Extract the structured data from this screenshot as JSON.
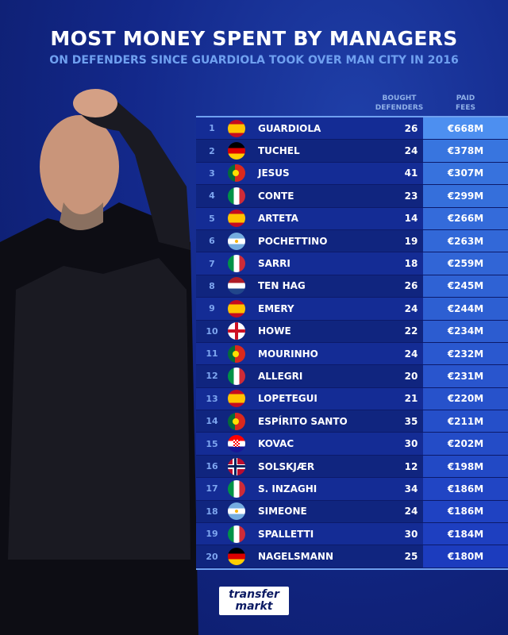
{
  "title": "MOST MONEY SPENT BY MANAGERS",
  "subtitle": "ON DEFENDERS SINCE GUARDIOLA TOOK OVER MAN CITY IN 2016",
  "logo_text": [
    "transfer",
    "markt"
  ],
  "chart_data": {
    "type": "table",
    "columns": [
      "BOUGHT DEFENDERS",
      "PAID FEES"
    ],
    "column_labels": {
      "bought_line1": "BOUGHT",
      "bought_line2": "DEFENDERS",
      "fees_line1": "PAID",
      "fees_line2": "FEES"
    },
    "rows": [
      {
        "rank": "1",
        "flag": "spain",
        "name": "GUARDIOLA",
        "bought": "26",
        "fee": "€668M"
      },
      {
        "rank": "2",
        "flag": "germany",
        "name": "TUCHEL",
        "bought": "24",
        "fee": "€378M"
      },
      {
        "rank": "3",
        "flag": "portugal",
        "name": "JESUS",
        "bought": "41",
        "fee": "€307M"
      },
      {
        "rank": "4",
        "flag": "italy",
        "name": "CONTE",
        "bought": "23",
        "fee": "€299M"
      },
      {
        "rank": "5",
        "flag": "spain",
        "name": "ARTETA",
        "bought": "14",
        "fee": "€266M"
      },
      {
        "rank": "6",
        "flag": "argentina",
        "name": "POCHETTINO",
        "bought": "19",
        "fee": "€263M"
      },
      {
        "rank": "7",
        "flag": "italy",
        "name": "SARRI",
        "bought": "18",
        "fee": "€259M"
      },
      {
        "rank": "8",
        "flag": "netherlands",
        "name": "TEN HAG",
        "bought": "26",
        "fee": "€245M"
      },
      {
        "rank": "9",
        "flag": "spain",
        "name": "EMERY",
        "bought": "24",
        "fee": "€244M"
      },
      {
        "rank": "10",
        "flag": "england",
        "name": "HOWE",
        "bought": "22",
        "fee": "€234M"
      },
      {
        "rank": "11",
        "flag": "portugal",
        "name": "MOURINHO",
        "bought": "24",
        "fee": "€232M"
      },
      {
        "rank": "12",
        "flag": "italy",
        "name": "ALLEGRI",
        "bought": "20",
        "fee": "€231M"
      },
      {
        "rank": "13",
        "flag": "spain",
        "name": "LOPETEGUI",
        "bought": "21",
        "fee": "€220M"
      },
      {
        "rank": "14",
        "flag": "portugal",
        "name": "ESPÍRITO SANTO",
        "bought": "35",
        "fee": "€211M"
      },
      {
        "rank": "15",
        "flag": "croatia",
        "name": "KOVAC",
        "bought": "30",
        "fee": "€202M"
      },
      {
        "rank": "16",
        "flag": "norway",
        "name": "SOLSKJÆR",
        "bought": "12",
        "fee": "€198M"
      },
      {
        "rank": "17",
        "flag": "italy",
        "name": "S. INZAGHI",
        "bought": "34",
        "fee": "€186M"
      },
      {
        "rank": "18",
        "flag": "argentina",
        "name": "SIMEONE",
        "bought": "24",
        "fee": "€186M"
      },
      {
        "rank": "19",
        "flag": "italy",
        "name": "SPALLETTI",
        "bought": "30",
        "fee": "€184M"
      },
      {
        "rank": "20",
        "flag": "germany",
        "name": "NAGELSMANN",
        "bought": "25",
        "fee": "€180M"
      }
    ]
  }
}
